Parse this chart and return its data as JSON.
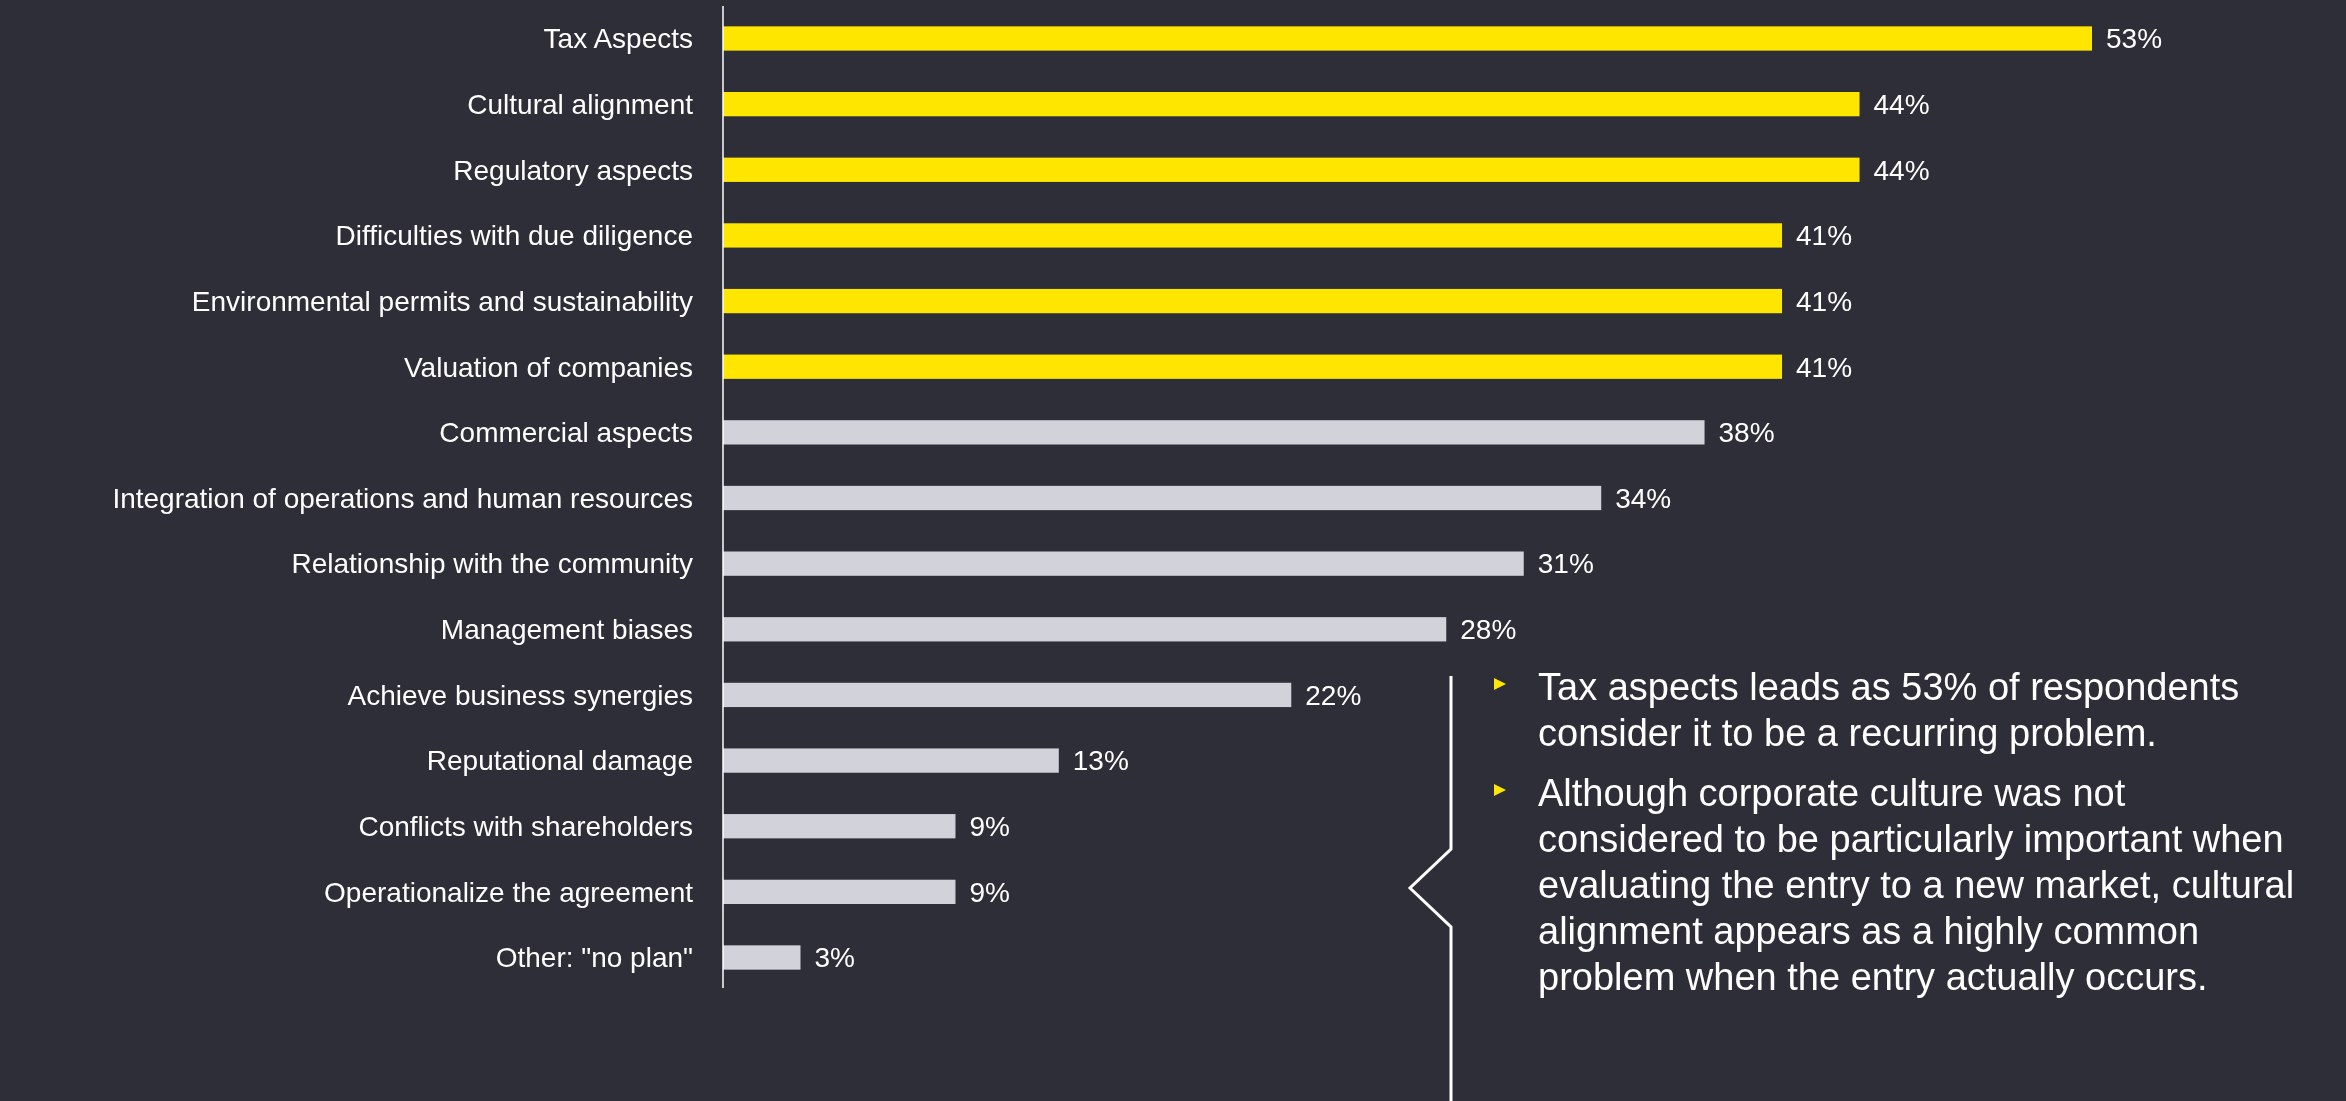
{
  "chart_data": {
    "type": "bar",
    "orientation": "horizontal",
    "data_labels": true,
    "categories": [
      "Tax Aspects",
      "Cultural alignment",
      "Regulatory aspects",
      "Difficulties with due diligence",
      "Environmental permits and sustainability",
      "Valuation of companies",
      "Commercial aspects",
      "Integration of operations and human resources",
      "Relationship with the community",
      "Management biases",
      "Achieve business synergies",
      "Reputational damage",
      "Conflicts with shareholders",
      "Operationalize the agreement",
      "Other: \"no plan\""
    ],
    "values": [
      53,
      44,
      44,
      41,
      41,
      41,
      38,
      34,
      31,
      28,
      22,
      13,
      9,
      9,
      3
    ],
    "value_labels": [
      "53%",
      "44%",
      "44%",
      "41%",
      "41%",
      "41%",
      "38%",
      "34%",
      "31%",
      "28%",
      "22%",
      "13%",
      "9%",
      "9%",
      "3%"
    ],
    "colors": [
      "#ffe600",
      "#ffe600",
      "#ffe600",
      "#ffe600",
      "#ffe600",
      "#ffe600",
      "#d2d2da",
      "#d2d2da",
      "#d2d2da",
      "#d2d2da",
      "#d2d2da",
      "#d2d2da",
      "#d2d2da",
      "#d2d2da",
      "#d2d2da"
    ],
    "xlim": [
      0,
      53
    ],
    "annotations": [
      "Tax aspects leads as 53% of respondents consider it to be a recurring problem.",
      "Although corporate culture was not considered to be particularly important when evaluating the entry to a new market, cultural alignment appears as a highly common problem when the entry actually occurs."
    ]
  }
}
